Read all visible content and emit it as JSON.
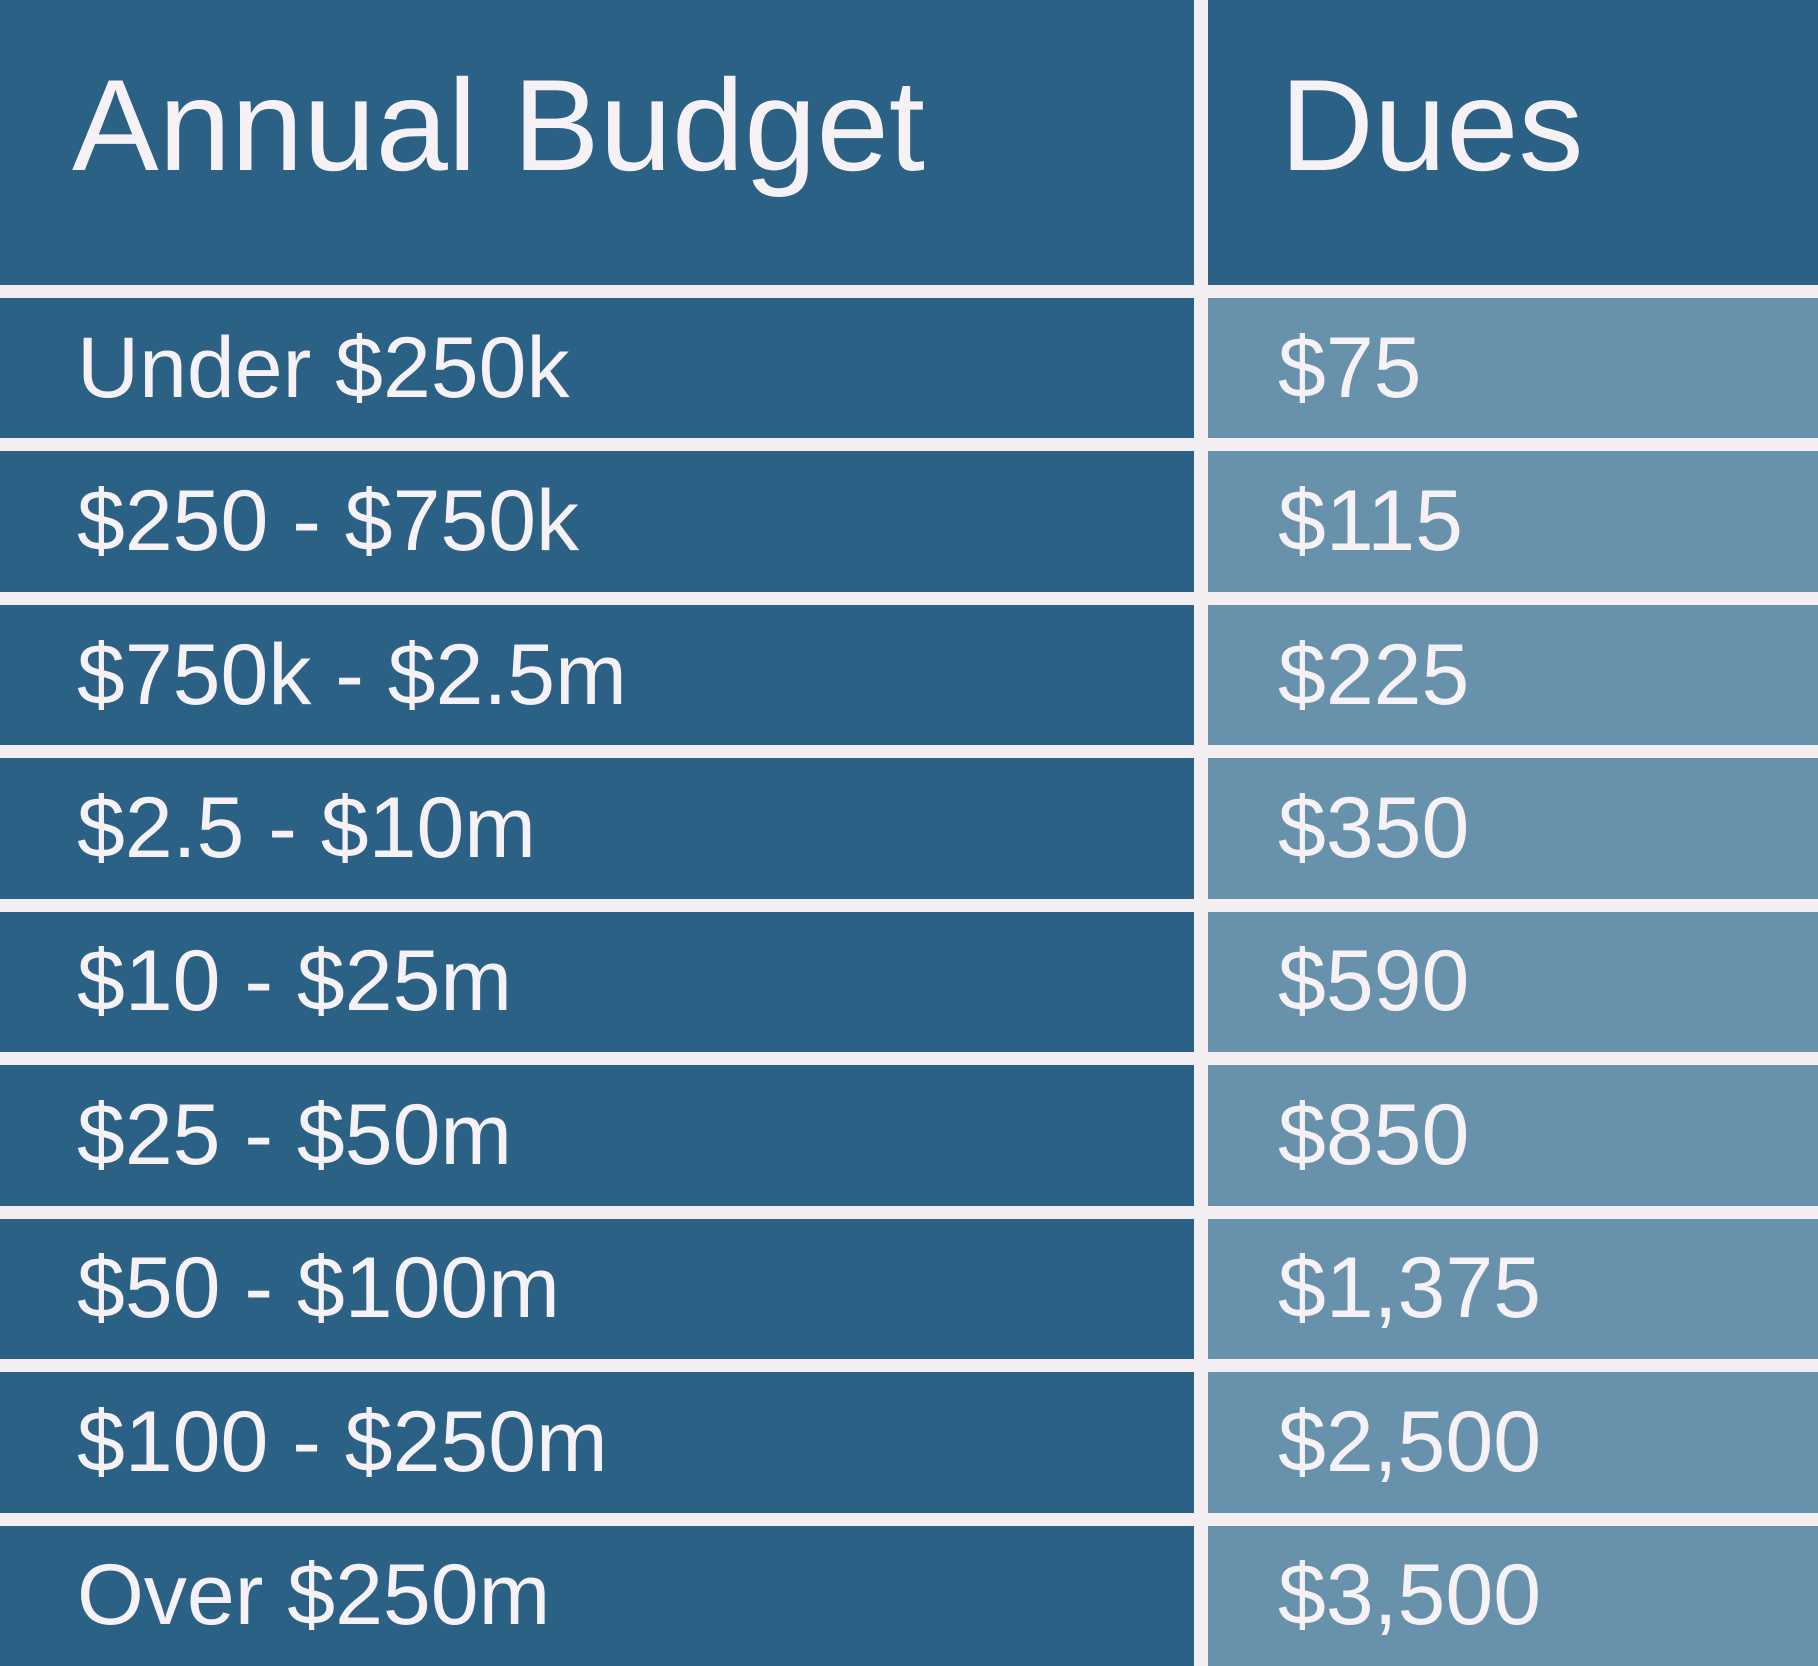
{
  "header": {
    "columns": [
      "Annual Budget",
      "Dues"
    ]
  },
  "table": {
    "rows": [
      [
        "Under $250k",
        "$75"
      ],
      [
        "$250 - $750k",
        "$115"
      ],
      [
        "$750k - $2.5m",
        "$225"
      ],
      [
        "$2.5 - $10m",
        "$350"
      ],
      [
        "$10 - $25m",
        "$590"
      ],
      [
        "$25 - $50m",
        "$850"
      ],
      [
        "$50 - $100m",
        "$1,375"
      ],
      [
        "$100 - $250m",
        "$2,500"
      ],
      [
        "Over $250m",
        "$3,500"
      ]
    ]
  }
}
